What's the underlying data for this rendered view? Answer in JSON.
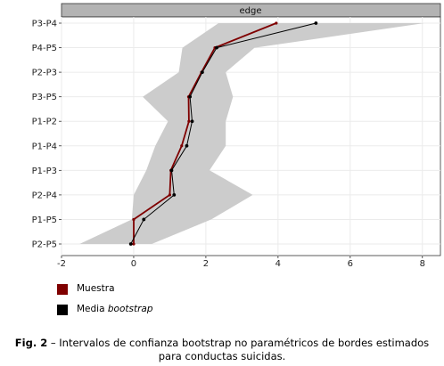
{
  "chart_data": {
    "type": "line",
    "facet_label": "edge",
    "categories": [
      "P3-P4",
      "P4-P5",
      "P2-P3",
      "P3-P5",
      "P1-P2",
      "P1-P4",
      "P1-P3",
      "P2-P4",
      "P1-P5",
      "P2-P5"
    ],
    "xlim": [
      -2,
      8.5
    ],
    "xticks": [
      -2,
      0,
      2,
      4,
      6,
      8
    ],
    "grid": true,
    "series": [
      {
        "name": "Muestra",
        "color": "#7f0000",
        "values": [
          3.95,
          2.25,
          1.88,
          1.52,
          1.53,
          1.33,
          1.03,
          1.0,
          0.0,
          0.0
        ]
      },
      {
        "name": "Media bootstrap",
        "color": "#000000",
        "values": [
          5.05,
          2.3,
          1.9,
          1.56,
          1.62,
          1.47,
          1.05,
          1.12,
          0.28,
          -0.08
        ]
      }
    ],
    "ci_band": {
      "color": "#cccccc",
      "lower": [
        2.35,
        1.35,
        1.25,
        0.25,
        0.95,
        0.6,
        0.35,
        0.0,
        -0.05,
        -1.5
      ],
      "upper": [
        8.05,
        3.35,
        2.55,
        2.75,
        2.55,
        2.55,
        2.1,
        3.3,
        2.15,
        0.5
      ]
    }
  },
  "legend": {
    "items": [
      {
        "label": "Muestra",
        "color": "#7f0000"
      },
      {
        "label_prefix": "Media ",
        "label_italic": "bootstrap",
        "color": "#000000"
      }
    ]
  },
  "caption": {
    "label": "Fig. 2",
    "text_line1": " – Intervalos de confianza bootstrap no paramétricos de bordes estimados",
    "text_line2": "para conductas suicidas."
  }
}
